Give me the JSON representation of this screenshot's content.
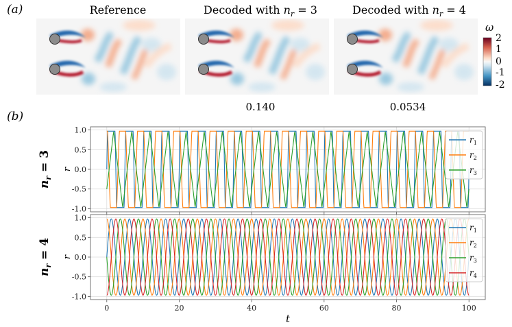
{
  "panel_a": {
    "label": "(a)",
    "panels": [
      {
        "title": "Reference",
        "error": ""
      },
      {
        "title": "Decoded with n_r = 3",
        "title_pre": "Decoded with ",
        "title_var": "n",
        "title_sub": "r",
        "title_post": " = 3",
        "error": "0.140"
      },
      {
        "title": "Decoded with n_r = 4",
        "title_pre": "Decoded with ",
        "title_var": "n",
        "title_sub": "r",
        "title_post": " = 4",
        "error": "0.0534"
      }
    ],
    "colorbar": {
      "symbol": "ω",
      "ticks": [
        "2",
        "1",
        "0",
        "-1",
        "-2"
      ],
      "colors": {
        "high": "#b2182b",
        "mid": "#f7f7f7",
        "low": "#2166ac"
      }
    }
  },
  "panel_b": {
    "label": "(b)"
  },
  "chart_data": [
    {
      "type": "line",
      "row_label": "n_r = 3",
      "row_label_var": "n",
      "row_label_sub": "r",
      "row_label_post": " = 3",
      "ylabel": "r",
      "xlim": [
        -4.5,
        104.5
      ],
      "ylim": [
        -1.08,
        1.08
      ],
      "yticks": [
        "1.0",
        "0.5",
        "0.0",
        "-0.5",
        "-1.0"
      ],
      "ytick_values": [
        1.0,
        0.5,
        0.0,
        -0.5,
        -1.0
      ],
      "grid": true,
      "legend": "top-right",
      "series": [
        {
          "name": "r1",
          "sub": "1",
          "color": "#1f77b4",
          "shape": "square",
          "period": 5.0,
          "phase": 0.0
        },
        {
          "name": "r2",
          "sub": "2",
          "color": "#ff7f0e",
          "shape": "mixed",
          "period": 5.0,
          "phase": 1.9
        },
        {
          "name": "r3",
          "sub": "3",
          "color": "#2ca02c",
          "shape": "triangle",
          "period": 5.0,
          "phase": 0.6
        }
      ]
    },
    {
      "type": "line",
      "row_label": "n_r = 4",
      "row_label_var": "n",
      "row_label_sub": "r",
      "row_label_post": " = 4",
      "ylabel": "r",
      "xlabel": "t",
      "xlim": [
        -4.5,
        104.5
      ],
      "xticks": [
        "0",
        "20",
        "40",
        "60",
        "80",
        "100"
      ],
      "xtick_values": [
        0,
        20,
        40,
        60,
        80,
        100
      ],
      "ylim": [
        -1.08,
        1.08
      ],
      "yticks": [
        "1.0",
        "0.5",
        "0.0",
        "-0.5",
        "-1.0"
      ],
      "ytick_values": [
        1.0,
        0.5,
        0.0,
        -0.5,
        -1.0
      ],
      "grid": true,
      "legend": "top-right",
      "series": [
        {
          "name": "r1",
          "sub": "1",
          "color": "#1f77b4",
          "shape": "sine",
          "period": 5.0,
          "phase": 0.0
        },
        {
          "name": "r2",
          "sub": "2",
          "color": "#ff7f0e",
          "shape": "sine",
          "period": 5.0,
          "phase": 1.25
        },
        {
          "name": "r3",
          "sub": "3",
          "color": "#2ca02c",
          "shape": "sine",
          "period": 5.0,
          "phase": 2.5
        },
        {
          "name": "r4",
          "sub": "4",
          "color": "#d62728",
          "shape": "sine",
          "period": 5.0,
          "phase": 3.75
        }
      ]
    }
  ]
}
